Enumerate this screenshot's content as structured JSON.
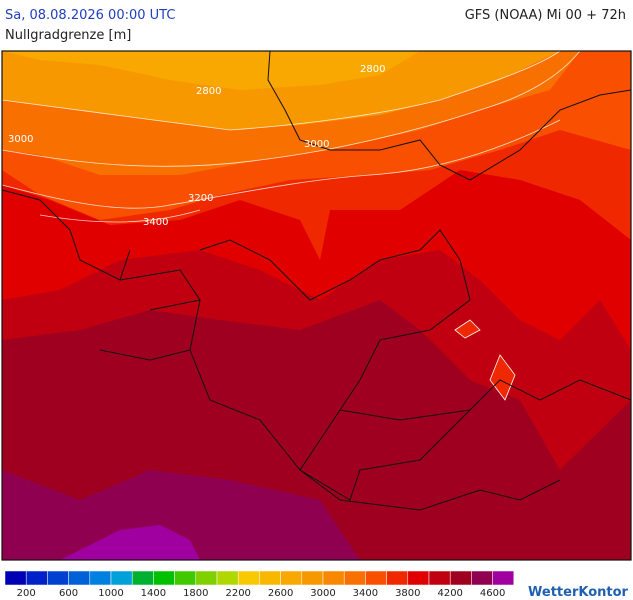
{
  "header": {
    "date": "Sa, 08.08.2026 00:00 UTC",
    "model": "GFS (NOAA) Mi 00 + 72h",
    "parameter": "Nullgradgrenze [m]"
  },
  "contour_labels": [
    "2800",
    "2800",
    "3000",
    "3000",
    "3200",
    "3400"
  ],
  "legend": {
    "colors": [
      "#0000b4",
      "#0020c8",
      "#0040d0",
      "#0060d8",
      "#0080e0",
      "#00a0d8",
      "#00b030",
      "#00c000",
      "#40c800",
      "#80d000",
      "#b0d800",
      "#f8c800",
      "#f8b800",
      "#f8a800",
      "#f89800",
      "#f88800",
      "#f87000",
      "#f85000",
      "#f02800",
      "#e00000",
      "#c00010",
      "#a00020",
      "#900050",
      "#a000a0"
    ],
    "labels": [
      "200",
      "600",
      "1000",
      "1400",
      "1800",
      "2200",
      "2600",
      "3000",
      "3400",
      "3800",
      "4200",
      "4600"
    ]
  },
  "logo": "WetterKontor"
}
